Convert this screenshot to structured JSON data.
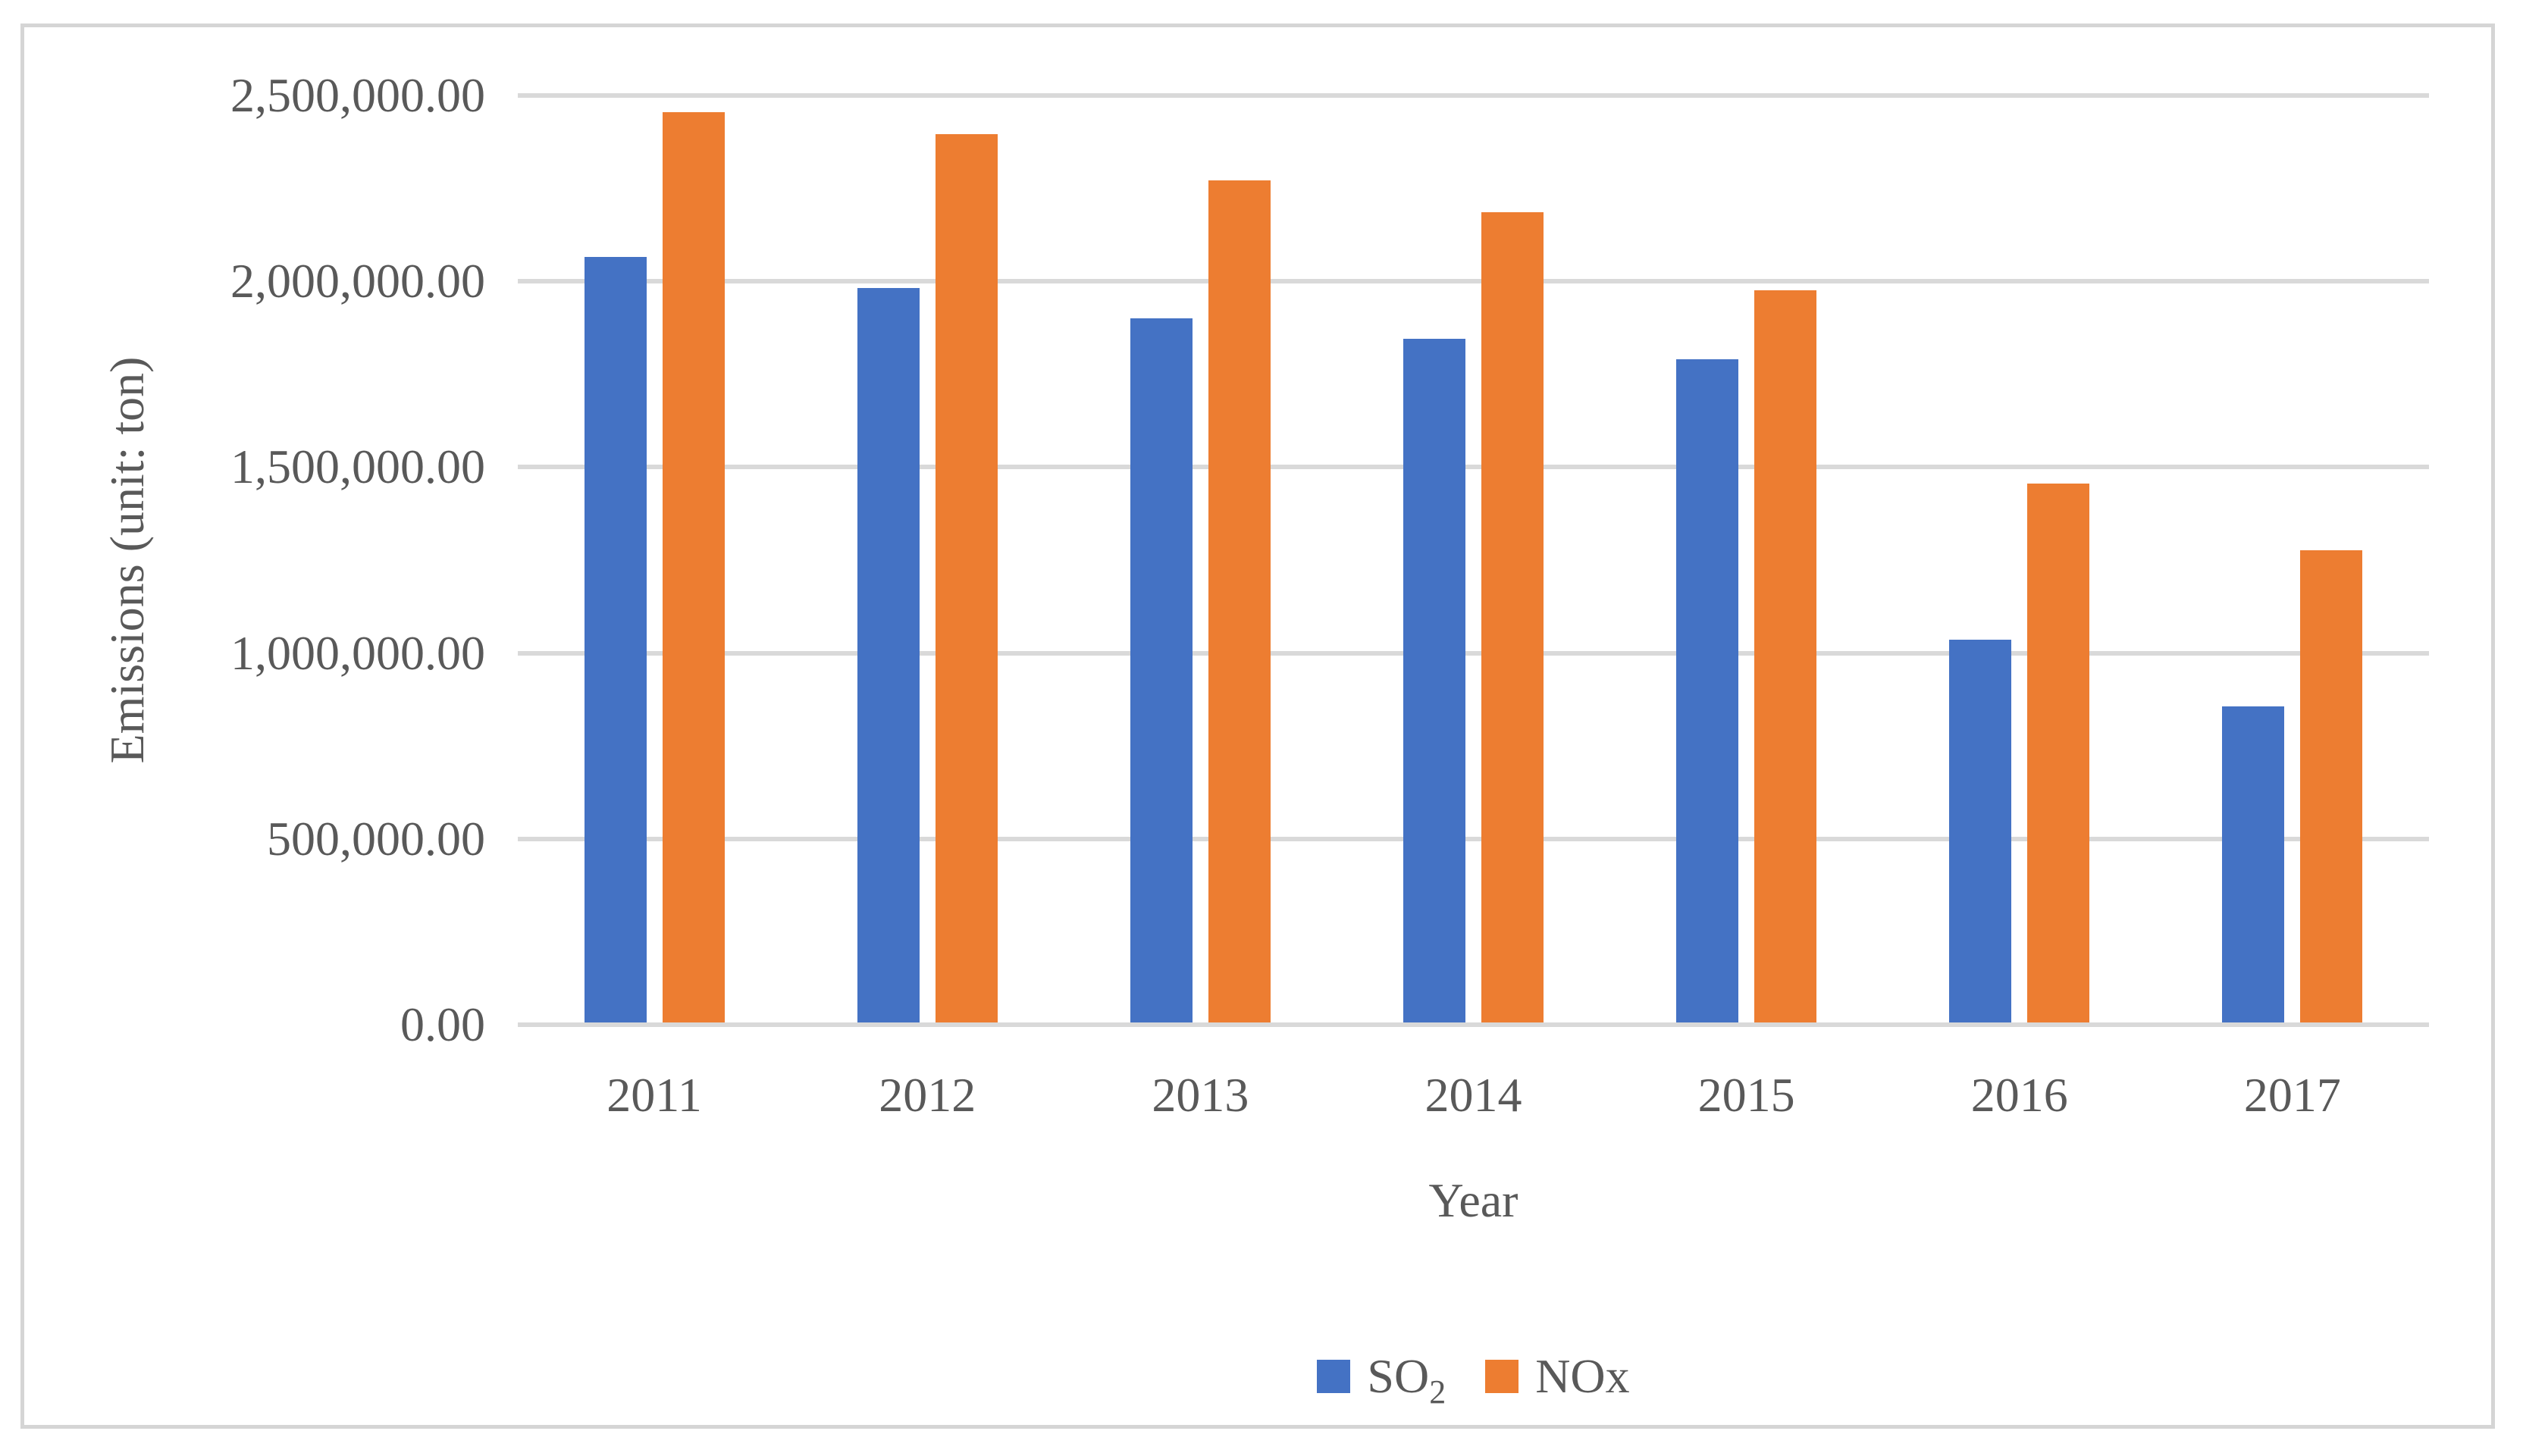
{
  "figure": {
    "background_color": "#ffffff",
    "frame_border_color": "#d5d5d5"
  },
  "style": {
    "gridline_color": "#d9d9d9",
    "axis_text_color": "#595959",
    "so2_color": "#4472C4",
    "nox_color": "#ED7D31"
  },
  "chart_data": {
    "type": "bar",
    "title": "",
    "xlabel": "Year",
    "ylabel": "Emissions (unit: ton)",
    "categories": [
      "2011",
      "2012",
      "2013",
      "2014",
      "2015",
      "2016",
      "2017"
    ],
    "series": [
      {
        "name": "SO2",
        "label_main": "SO",
        "label_sub": "2",
        "color": "#4472C4",
        "values": [
          2060000,
          1975000,
          1895000,
          1840000,
          1785000,
          1030000,
          850000
        ]
      },
      {
        "name": "NOx",
        "label_main": "NOx",
        "label_sub": "",
        "color": "#ED7D31",
        "values": [
          2450000,
          2390000,
          2265000,
          2180000,
          1970000,
          1450000,
          1270000
        ]
      }
    ],
    "ylim": [
      0,
      2500000
    ],
    "ytick_step": 500000,
    "ytick_labels": [
      "0.00",
      "500,000.00",
      "1,000,000.00",
      "1,500,000.00",
      "2,000,000.00",
      "2,500,000.00"
    ],
    "grid": true,
    "legend_position": "bottom-center"
  }
}
